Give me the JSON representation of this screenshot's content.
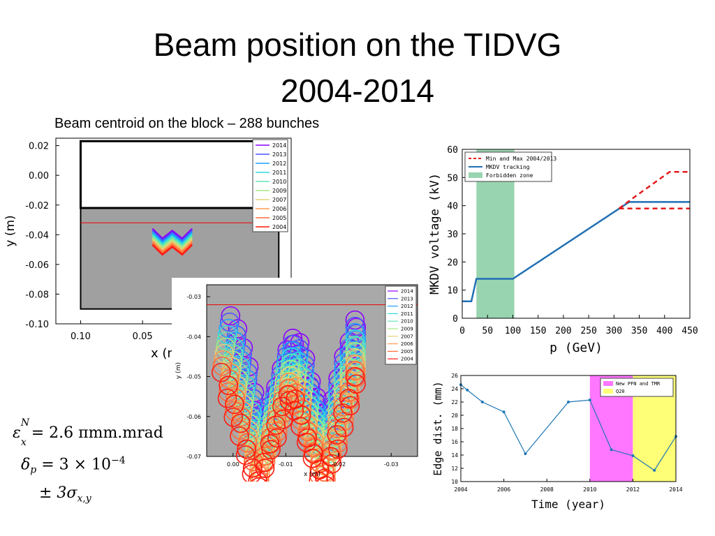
{
  "slide": {
    "title_line1": "Beam position on the TIDVG",
    "title_line2": "2004-2014",
    "subtitle": "Beam centroid on the block – 288 bunches"
  },
  "equations": {
    "emittance_symbol": "ε",
    "emittance_sup": "N",
    "emittance_sub": "x",
    "emittance_value": "= 2.6 πmm.mrad",
    "delta_symbol": "δ",
    "delta_sub": "p",
    "delta_value": "= 3 × 10",
    "delta_exp": "−4",
    "sigma_prefix": "± 3σ",
    "sigma_sub": "x,y"
  },
  "chart_data": [
    {
      "type": "scatter",
      "id": "block",
      "xlabel": "x (m)",
      "ylabel": "y (m)",
      "x_ticks": [
        "0.10",
        "0.05"
      ],
      "y_ticks": [
        "0.02",
        "0.00",
        "-0.02",
        "-0.04",
        "-0.06",
        "-0.08",
        "-0.10"
      ],
      "ylim": [
        -0.1,
        0.025
      ],
      "xlim": [
        0.12,
        -0.07
      ],
      "legend": [
        "2014",
        "2013",
        "2012",
        "2011",
        "2010",
        "2009",
        "2007",
        "2006",
        "2005",
        "2004"
      ],
      "legend_position": "top-right",
      "hline_y": -0.032
    },
    {
      "type": "scatter",
      "id": "zoom",
      "xlabel": "x (m)",
      "ylabel": "y (m)",
      "x_ticks": [
        "0.00",
        "-0.01",
        "-0.02",
        "-0.03"
      ],
      "y_ticks": [
        "-0.03",
        "-0.04",
        "-0.05",
        "-0.06",
        "-0.07"
      ],
      "xlim": [
        0.005,
        -0.035
      ],
      "ylim": [
        -0.07,
        -0.027
      ],
      "legend": [
        "2014",
        "2013",
        "2012",
        "2011",
        "2010",
        "2009",
        "2007",
        "2006",
        "2005",
        "2004"
      ],
      "legend_position": "top-right",
      "hline_y": -0.032
    },
    {
      "type": "line",
      "id": "mkdv",
      "xlabel": "p (GeV)",
      "ylabel": "MKDV voltage (kV)",
      "xlim": [
        0,
        450
      ],
      "ylim": [
        0,
        60
      ],
      "x_ticks": [
        0,
        50,
        100,
        150,
        200,
        250,
        300,
        350,
        400,
        450
      ],
      "y_ticks": [
        0,
        10,
        20,
        30,
        40,
        50,
        60
      ],
      "legend_position": "top-left",
      "series": [
        {
          "name": "Min and Max 2004/2013",
          "style": "dashed",
          "color": "#e41a1c",
          "segments": [
            {
              "x": [
                310,
                340,
                410,
                450
              ],
              "y": [
                39,
                43,
                52,
                52
              ]
            },
            {
              "x": [
                310,
                450
              ],
              "y": [
                39,
                39
              ]
            }
          ]
        },
        {
          "name": "MKDV tracking",
          "style": "solid",
          "color": "#1f6fb5",
          "x": [
            0,
            18,
            28,
            100,
            330,
            450
          ],
          "y": [
            6,
            6,
            14,
            14,
            41.3,
            41.3
          ]
        },
        {
          "name": "Forbidden zone",
          "style": "band",
          "color": "#99d4b0",
          "x_range": [
            28,
            103
          ]
        }
      ]
    },
    {
      "type": "line",
      "id": "edge",
      "xlabel": "Time (year)",
      "ylabel": "Edge dist. (mm)",
      "xlim": [
        2004,
        2014
      ],
      "ylim": [
        10,
        26
      ],
      "x_ticks": [
        2004,
        2006,
        2008,
        2010,
        2012,
        2014
      ],
      "y_ticks": [
        10,
        12,
        14,
        16,
        18,
        20,
        22,
        24,
        26
      ],
      "legend_position": "top-right",
      "series": [
        {
          "name": "Edge dist.",
          "color": "#1f77b4",
          "x": [
            2004,
            2004.3,
            2005,
            2006,
            2007,
            2009,
            2010,
            2011,
            2012,
            2013,
            2014
          ],
          "y": [
            24.6,
            23.8,
            22.0,
            20.5,
            14.2,
            22.0,
            22.3,
            14.8,
            13.9,
            11.7,
            16.8
          ]
        }
      ],
      "bands": [
        {
          "name": "New PFN and TMR",
          "color": "#ff77ff",
          "x_range": [
            2010,
            2012
          ]
        },
        {
          "name": "Q20",
          "color": "#ffff77",
          "x_range": [
            2012,
            2014
          ]
        }
      ]
    }
  ],
  "colors": {
    "years": [
      "#8b00ff",
      "#4a52ff",
      "#1ea0ff",
      "#2fd9e0",
      "#66e6b2",
      "#a8e882",
      "#e0d27a",
      "#ff9a50",
      "#ff6a3a",
      "#ff1a10"
    ],
    "block_fill": "#a0a0a0"
  }
}
